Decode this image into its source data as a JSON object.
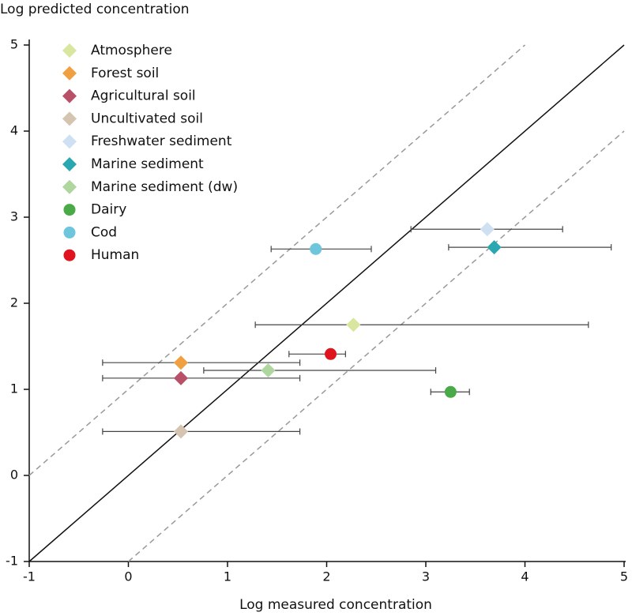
{
  "chart_data": {
    "type": "scatter",
    "ylabel": "Log predicted concentration",
    "xlabel": "Log measured concentration",
    "xlim": [
      -1,
      5
    ],
    "ylim": [
      -1,
      5
    ],
    "xticks": [
      -1,
      0,
      1,
      2,
      3,
      4,
      5
    ],
    "yticks": [
      -1,
      0,
      1,
      2,
      3,
      4,
      5
    ],
    "reference_lines": [
      {
        "offset": 0,
        "style": "solid"
      },
      {
        "offset": 1,
        "style": "dashed"
      },
      {
        "offset": -1,
        "style": "dashed"
      }
    ],
    "series": [
      {
        "name": "Atmosphere",
        "color": "#d9e6a0",
        "marker": "diamond",
        "x": [
          2.27
        ],
        "y": [
          1.75
        ],
        "xerr_minus": [
          0.99
        ],
        "xerr_plus": [
          2.37
        ]
      },
      {
        "name": "Forest soil",
        "color": "#f0a040",
        "marker": "diamond",
        "x": [
          0.53
        ],
        "y": [
          1.31
        ],
        "xerr_minus": [
          0.79
        ],
        "xerr_plus": [
          1.2
        ]
      },
      {
        "name": "Agricultural soil",
        "color": "#b85068",
        "marker": "diamond",
        "x": [
          0.53
        ],
        "y": [
          1.13
        ],
        "xerr_minus": [
          0.79
        ],
        "xerr_plus": [
          1.2
        ]
      },
      {
        "name": "Uncultivated soil",
        "color": "#d4c4b0",
        "marker": "diamond",
        "x": [
          0.53
        ],
        "y": [
          0.51
        ],
        "xerr_minus": [
          0.79
        ],
        "xerr_plus": [
          1.2
        ]
      },
      {
        "name": "Freshwater sediment",
        "color": "#cfe0f2",
        "marker": "diamond",
        "x": [
          3.62
        ],
        "y": [
          2.86
        ],
        "xerr_minus": [
          0.77
        ],
        "xerr_plus": [
          0.76
        ]
      },
      {
        "name": "Marine sediment",
        "color": "#2aa7b0",
        "marker": "diamond",
        "x": [
          3.69
        ],
        "y": [
          2.65
        ],
        "xerr_minus": [
          0.46
        ],
        "xerr_plus": [
          1.18
        ]
      },
      {
        "name": "Marine sediment (dw)",
        "color": "#b0d6a0",
        "marker": "diamond",
        "x": [
          1.41
        ],
        "y": [
          1.22
        ],
        "xerr_minus": [
          0.65
        ],
        "xerr_plus": [
          1.69
        ]
      },
      {
        "name": "Dairy",
        "color": "#4aaa48",
        "marker": "circle",
        "x": [
          3.25
        ],
        "y": [
          0.97
        ],
        "xerr_minus": [
          0.2
        ],
        "xerr_plus": [
          0.19
        ]
      },
      {
        "name": "Cod",
        "color": "#6ec6dc",
        "marker": "circle",
        "x": [
          1.89
        ],
        "y": [
          2.63
        ],
        "xerr_minus": [
          0.45
        ],
        "xerr_plus": [
          0.56
        ]
      },
      {
        "name": "Human",
        "color": "#e0141e",
        "marker": "circle",
        "x": [
          2.04
        ],
        "y": [
          1.41
        ],
        "xerr_minus": [
          0.42
        ],
        "xerr_plus": [
          0.15
        ]
      }
    ]
  }
}
